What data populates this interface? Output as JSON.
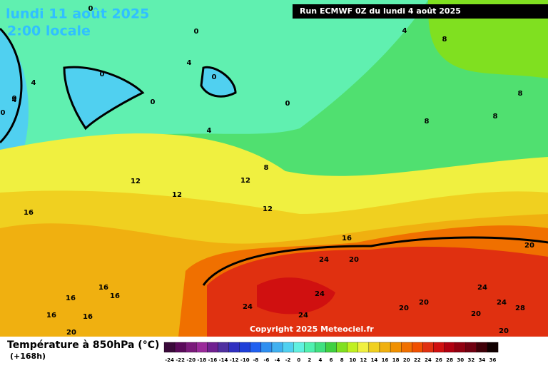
{
  "header": {
    "date": "lundi 11 août 2025",
    "time": "2:00 locale",
    "run": "Run ECMWF 0Z du lundi 4 août 2025"
  },
  "footer": {
    "copyright": "Copyright 2025 Meteociel.fr",
    "title": "Température à 850hPa (°C)",
    "lead": "(+168h)"
  },
  "colorbar": {
    "values": [
      -24,
      -22,
      -20,
      -18,
      -16,
      -14,
      -12,
      -10,
      -8,
      -6,
      -4,
      -2,
      0,
      2,
      4,
      6,
      8,
      10,
      12,
      14,
      16,
      18,
      20,
      22,
      24,
      26,
      28,
      30,
      32,
      34,
      36
    ],
    "colors": [
      "#3a0a3a",
      "#5a0a5a",
      "#7a1a7a",
      "#9a2a9a",
      "#702090",
      "#5030a0",
      "#3030c0",
      "#1f3fd8",
      "#2060f0",
      "#2f8ff0",
      "#40b0f0",
      "#50d0f0",
      "#60f0e0",
      "#50f0b0",
      "#40e080",
      "#40d040",
      "#80e020",
      "#c0f020",
      "#f0f040",
      "#f0d020",
      "#f0b010",
      "#f09000",
      "#f07000",
      "#f05000",
      "#e03010",
      "#d01010",
      "#b00010",
      "#900010",
      "#700010",
      "#400008",
      "#100000"
    ]
  },
  "contour_labels": [
    0,
    0,
    4,
    0,
    0,
    4,
    8,
    4,
    4,
    0,
    0,
    0,
    0,
    4,
    8,
    8,
    8,
    8,
    12,
    12,
    12,
    12,
    16,
    16,
    20,
    24,
    24,
    24,
    20,
    20,
    20,
    16,
    16,
    16,
    16,
    16,
    20,
    24,
    28,
    20,
    24,
    24,
    20
  ]
}
